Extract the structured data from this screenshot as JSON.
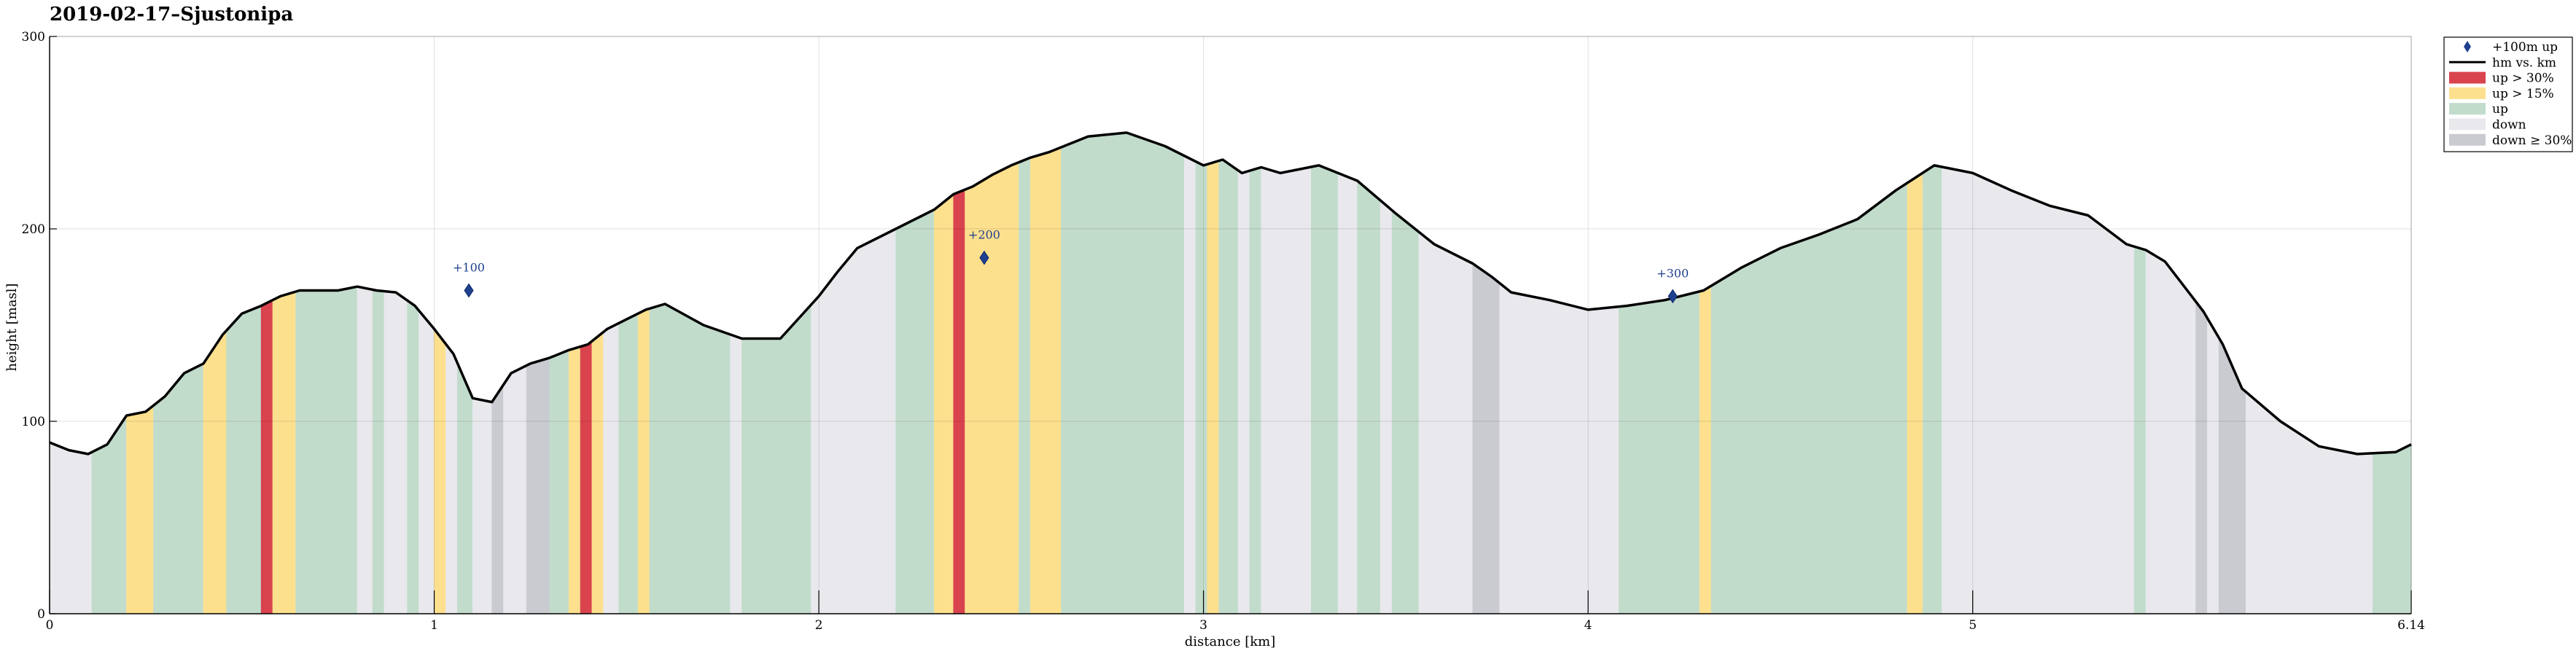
{
  "chart_data": {
    "type": "area",
    "title": "2019-02-17–Sjustonipa",
    "xlabel": "distance [km]",
    "ylabel": "height [masl]",
    "xlim": [
      0,
      6.14
    ],
    "ylim": [
      0,
      300
    ],
    "x_ticks": [
      0,
      1,
      2,
      3,
      4,
      5,
      6.14
    ],
    "x_tick_labels": [
      "0",
      "1",
      "2",
      "3",
      "4",
      "5",
      "6.14"
    ],
    "y_ticks": [
      0,
      100,
      200,
      300
    ],
    "y_tick_labels": [
      "0",
      "100",
      "200",
      "300"
    ],
    "grid": true,
    "legend_position": "top-right",
    "legend": [
      {
        "key": "marker",
        "label": "+100m up",
        "color": "#1f3f8f"
      },
      {
        "key": "line",
        "label": "hm vs. km",
        "color": "#000000"
      },
      {
        "key": "steep_up",
        "label": "up > 30%",
        "color": "#d9434e"
      },
      {
        "key": "mod_up",
        "label": "up > 15%",
        "color": "#fde08e"
      },
      {
        "key": "up",
        "label": "up",
        "color": "#c2dccc"
      },
      {
        "key": "down",
        "label": "down",
        "color": "#e8e8ed"
      },
      {
        "key": "steep_down",
        "label": "down ≥ 30%",
        "color": "#c9cbd1"
      }
    ],
    "profile": {
      "name": "hm vs. km",
      "x": [
        0,
        0.05,
        0.1,
        0.15,
        0.2,
        0.25,
        0.3,
        0.35,
        0.4,
        0.45,
        0.5,
        0.55,
        0.6,
        0.65,
        0.7,
        0.75,
        0.8,
        0.85,
        0.9,
        0.95,
        1.0,
        1.05,
        1.1,
        1.15,
        1.2,
        1.25,
        1.3,
        1.35,
        1.4,
        1.45,
        1.5,
        1.55,
        1.6,
        1.7,
        1.8,
        1.9,
        2.0,
        2.05,
        2.1,
        2.2,
        2.3,
        2.35,
        2.4,
        2.45,
        2.5,
        2.55,
        2.6,
        2.7,
        2.8,
        2.9,
        3.0,
        3.05,
        3.1,
        3.15,
        3.2,
        3.3,
        3.4,
        3.5,
        3.6,
        3.7,
        3.75,
        3.8,
        3.9,
        4.0,
        4.1,
        4.2,
        4.3,
        4.4,
        4.5,
        4.6,
        4.7,
        4.8,
        4.9,
        5.0,
        5.1,
        5.2,
        5.3,
        5.4,
        5.45,
        5.5,
        5.55,
        5.6,
        5.65,
        5.7,
        5.8,
        5.9,
        6.0,
        6.1,
        6.14
      ],
      "y": [
        89,
        85,
        83,
        88,
        103,
        105,
        113,
        125,
        130,
        145,
        156,
        160,
        165,
        168,
        168,
        168,
        170,
        168,
        167,
        160,
        148,
        135,
        112,
        110,
        125,
        130,
        133,
        137,
        140,
        148,
        153,
        158,
        161,
        150,
        143,
        143,
        165,
        178,
        190,
        200,
        210,
        218,
        222,
        228,
        233,
        237,
        240,
        248,
        250,
        243,
        233,
        236,
        229,
        232,
        229,
        233,
        225,
        208,
        192,
        182,
        175,
        167,
        163,
        158,
        160,
        163,
        168,
        180,
        190,
        197,
        205,
        220,
        233,
        229,
        220,
        212,
        207,
        192,
        189,
        183,
        170,
        157,
        140,
        117,
        100,
        87,
        83,
        84,
        88
      ]
    },
    "segments": [
      {
        "from": 0.0,
        "to": 0.11,
        "kind": "down"
      },
      {
        "from": 0.11,
        "to": 0.2,
        "kind": "up"
      },
      {
        "from": 0.2,
        "to": 0.27,
        "kind": "mod_up"
      },
      {
        "from": 0.27,
        "to": 0.4,
        "kind": "up"
      },
      {
        "from": 0.4,
        "to": 0.46,
        "kind": "mod_up"
      },
      {
        "from": 0.46,
        "to": 0.55,
        "kind": "up"
      },
      {
        "from": 0.55,
        "to": 0.58,
        "kind": "steep_up"
      },
      {
        "from": 0.58,
        "to": 0.64,
        "kind": "mod_up"
      },
      {
        "from": 0.64,
        "to": 0.8,
        "kind": "up"
      },
      {
        "from": 0.8,
        "to": 0.84,
        "kind": "down"
      },
      {
        "from": 0.84,
        "to": 0.87,
        "kind": "up"
      },
      {
        "from": 0.87,
        "to": 0.93,
        "kind": "down"
      },
      {
        "from": 0.93,
        "to": 0.96,
        "kind": "up"
      },
      {
        "from": 0.96,
        "to": 1.0,
        "kind": "down"
      },
      {
        "from": 1.0,
        "to": 1.03,
        "kind": "mod_up"
      },
      {
        "from": 1.03,
        "to": 1.06,
        "kind": "down"
      },
      {
        "from": 1.06,
        "to": 1.1,
        "kind": "up"
      },
      {
        "from": 1.1,
        "to": 1.15,
        "kind": "down"
      },
      {
        "from": 1.15,
        "to": 1.18,
        "kind": "steep_down"
      },
      {
        "from": 1.18,
        "to": 1.24,
        "kind": "down"
      },
      {
        "from": 1.24,
        "to": 1.3,
        "kind": "steep_down"
      },
      {
        "from": 1.3,
        "to": 1.35,
        "kind": "up"
      },
      {
        "from": 1.35,
        "to": 1.38,
        "kind": "mod_up"
      },
      {
        "from": 1.38,
        "to": 1.41,
        "kind": "steep_up"
      },
      {
        "from": 1.41,
        "to": 1.44,
        "kind": "mod_up"
      },
      {
        "from": 1.44,
        "to": 1.48,
        "kind": "down"
      },
      {
        "from": 1.48,
        "to": 1.53,
        "kind": "up"
      },
      {
        "from": 1.53,
        "to": 1.56,
        "kind": "mod_up"
      },
      {
        "from": 1.56,
        "to": 1.77,
        "kind": "up"
      },
      {
        "from": 1.77,
        "to": 1.8,
        "kind": "down"
      },
      {
        "from": 1.8,
        "to": 1.98,
        "kind": "up"
      },
      {
        "from": 1.98,
        "to": 2.2,
        "kind": "down"
      },
      {
        "from": 2.2,
        "to": 2.3,
        "kind": "up"
      },
      {
        "from": 2.3,
        "to": 2.35,
        "kind": "mod_up"
      },
      {
        "from": 2.35,
        "to": 2.38,
        "kind": "steep_up"
      },
      {
        "from": 2.38,
        "to": 2.52,
        "kind": "mod_up"
      },
      {
        "from": 2.52,
        "to": 2.55,
        "kind": "up"
      },
      {
        "from": 2.55,
        "to": 2.63,
        "kind": "mod_up"
      },
      {
        "from": 2.63,
        "to": 2.95,
        "kind": "up"
      },
      {
        "from": 2.95,
        "to": 2.98,
        "kind": "down"
      },
      {
        "from": 2.98,
        "to": 3.01,
        "kind": "up"
      },
      {
        "from": 3.01,
        "to": 3.04,
        "kind": "mod_up"
      },
      {
        "from": 3.04,
        "to": 3.09,
        "kind": "up"
      },
      {
        "from": 3.09,
        "to": 3.12,
        "kind": "down"
      },
      {
        "from": 3.12,
        "to": 3.15,
        "kind": "up"
      },
      {
        "from": 3.15,
        "to": 3.28,
        "kind": "down"
      },
      {
        "from": 3.28,
        "to": 3.35,
        "kind": "up"
      },
      {
        "from": 3.35,
        "to": 3.4,
        "kind": "down"
      },
      {
        "from": 3.4,
        "to": 3.46,
        "kind": "up"
      },
      {
        "from": 3.46,
        "to": 3.49,
        "kind": "down"
      },
      {
        "from": 3.49,
        "to": 3.56,
        "kind": "up"
      },
      {
        "from": 3.56,
        "to": 3.7,
        "kind": "down"
      },
      {
        "from": 3.7,
        "to": 3.77,
        "kind": "steep_down"
      },
      {
        "from": 3.77,
        "to": 4.08,
        "kind": "down"
      },
      {
        "from": 4.08,
        "to": 4.29,
        "kind": "up"
      },
      {
        "from": 4.29,
        "to": 4.32,
        "kind": "mod_up"
      },
      {
        "from": 4.32,
        "to": 4.83,
        "kind": "up"
      },
      {
        "from": 4.83,
        "to": 4.87,
        "kind": "mod_up"
      },
      {
        "from": 4.87,
        "to": 4.92,
        "kind": "up"
      },
      {
        "from": 4.92,
        "to": 5.42,
        "kind": "down"
      },
      {
        "from": 5.42,
        "to": 5.45,
        "kind": "up"
      },
      {
        "from": 5.45,
        "to": 5.58,
        "kind": "down"
      },
      {
        "from": 5.58,
        "to": 5.61,
        "kind": "steep_down"
      },
      {
        "from": 5.61,
        "to": 5.64,
        "kind": "down"
      },
      {
        "from": 5.64,
        "to": 5.71,
        "kind": "steep_down"
      },
      {
        "from": 5.71,
        "to": 6.04,
        "kind": "down"
      },
      {
        "from": 6.04,
        "to": 6.14,
        "kind": "up"
      }
    ],
    "milestones": [
      {
        "label": "+100",
        "x": 1.09,
        "y": 168
      },
      {
        "label": "+200",
        "x": 2.43,
        "y": 185
      },
      {
        "label": "+300",
        "x": 4.22,
        "y": 165
      }
    ]
  }
}
